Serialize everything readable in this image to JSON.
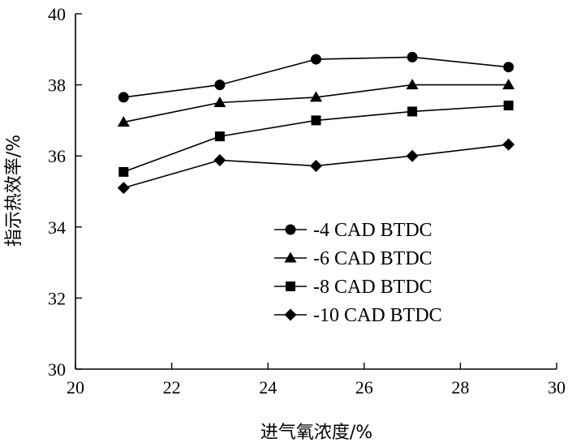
{
  "chart_data": {
    "type": "line",
    "title": "",
    "xlabel": "进气氧浓度/%",
    "ylabel": "指示热效率/%",
    "xlim": [
      20,
      30
    ],
    "ylim": [
      30,
      40
    ],
    "xticks": [
      20,
      22,
      24,
      26,
      28,
      30
    ],
    "yticks": [
      30,
      32,
      34,
      36,
      38,
      40
    ],
    "grid": false,
    "legend_position": "lower-right",
    "series": [
      {
        "name": "-4 CAD BTDC",
        "marker": "circle",
        "x": [
          21,
          23,
          25,
          27,
          29
        ],
        "y": [
          37.65,
          38.0,
          38.72,
          38.78,
          38.5
        ]
      },
      {
        "name": "-6 CAD BTDC",
        "marker": "triangle",
        "x": [
          21,
          23,
          25,
          27,
          29
        ],
        "y": [
          36.95,
          37.5,
          37.65,
          38.0,
          38.0
        ]
      },
      {
        "name": "-8 CAD BTDC",
        "marker": "square",
        "x": [
          21,
          23,
          25,
          27,
          29
        ],
        "y": [
          35.55,
          36.55,
          37.0,
          37.25,
          37.42
        ]
      },
      {
        "name": "-10 CAD BTDC",
        "marker": "diamond",
        "x": [
          21,
          23,
          25,
          27,
          29
        ],
        "y": [
          35.1,
          35.88,
          35.72,
          36.0,
          36.32
        ]
      }
    ]
  }
}
